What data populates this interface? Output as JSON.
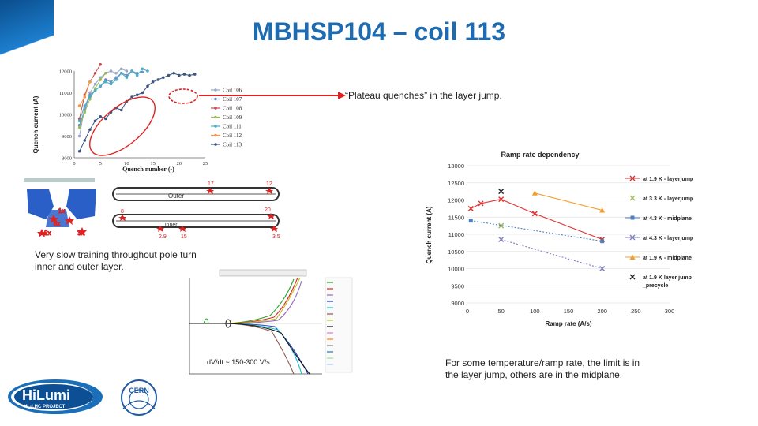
{
  "slide": {
    "title": "MBHSP104 – coil 113",
    "plateau_note": "“Plateau quenches” in the layer jump.",
    "training_note_line1": "Very slow training throughout pole turn",
    "training_note_line2": "inner and outer layer.",
    "ramp_note_line1": "For some temperature/ramp rate, the limit is in",
    "ramp_note_line2": "the layer jump, others are in the midplane.",
    "dvdt_label": "dV/dt ~ 150-300 V/s",
    "logo_hilumi_main": "HiLumi",
    "logo_hilumi_sub": "HL-LHC PROJECT",
    "logo_cern": "CERN"
  },
  "chart_data": [
    {
      "type": "line",
      "title": "",
      "xlabel": "Quench number (-)",
      "ylabel": "Quench current (A)",
      "xlim": [
        0,
        25
      ],
      "ylim": [
        8000,
        12000
      ],
      "x_ticks": [
        "0",
        "5",
        "10",
        "15",
        "20",
        "25"
      ],
      "y_ticks": [
        "8000",
        "9000",
        "10000",
        "11000",
        "12000"
      ],
      "legend_position": "right",
      "series": [
        {
          "name": "Coil 106",
          "color": "#9aa8c8",
          "x": [
            1,
            2,
            3,
            4,
            5,
            6,
            7,
            8,
            9,
            10
          ],
          "values": [
            9000,
            10300,
            11000,
            11400,
            11700,
            11900,
            12000,
            11900,
            12100,
            12000
          ]
        },
        {
          "name": "Coil 107",
          "color": "#6a8fc0",
          "x": [
            1,
            2,
            3,
            4,
            5,
            6,
            7,
            8,
            9,
            10,
            11,
            12,
            13
          ],
          "values": [
            9500,
            10200,
            10900,
            11100,
            11300,
            11600,
            11500,
            11700,
            11900,
            11800,
            12000,
            11900,
            11950
          ]
        },
        {
          "name": "Coil 108",
          "color": "#c0504d",
          "x": [
            1,
            2,
            3,
            4,
            5
          ],
          "values": [
            9800,
            10900,
            11500,
            11900,
            12300
          ]
        },
        {
          "name": "Coil 109",
          "color": "#9bbb59",
          "x": [
            1,
            2,
            3,
            4,
            5,
            6
          ],
          "values": [
            9400,
            10100,
            10700,
            11200,
            11600,
            11900
          ]
        },
        {
          "name": "Coil 111",
          "color": "#4bacc6",
          "x": [
            1,
            2,
            3,
            4,
            5,
            6,
            7,
            8,
            9,
            10,
            11,
            12,
            13,
            14
          ],
          "values": [
            9700,
            10400,
            10800,
            11100,
            11300,
            11500,
            11400,
            11600,
            11900,
            11700,
            12000,
            11800,
            12100,
            12000
          ]
        },
        {
          "name": "Coil 112",
          "color": "#f79646",
          "x": [
            1,
            2,
            3
          ],
          "values": [
            10400,
            10800,
            11500
          ]
        },
        {
          "name": "Coil 113",
          "color": "#3a5683",
          "x": [
            1,
            2,
            3,
            4,
            5,
            6,
            7,
            8,
            9,
            10,
            11,
            12,
            13,
            14,
            15,
            16,
            17,
            18,
            19,
            20,
            21,
            22,
            23
          ],
          "values": [
            8300,
            8800,
            9300,
            9700,
            9900,
            9800,
            10100,
            10300,
            10200,
            10600,
            10800,
            10900,
            11000,
            11300,
            11500,
            11600,
            11700,
            11800,
            11900,
            11800,
            11850,
            11800,
            11850
          ]
        }
      ]
    },
    {
      "type": "scatter",
      "title": "Ramp rate dependency",
      "xlabel": "Ramp rate (A/s)",
      "ylabel": "Quench current (A)",
      "xlim": [
        0,
        300
      ],
      "ylim": [
        9000,
        13000
      ],
      "x_ticks": [
        "0",
        "50",
        "100",
        "150",
        "200",
        "250",
        "300"
      ],
      "y_ticks": [
        "9000",
        "9500",
        "10000",
        "10500",
        "11000",
        "11500",
        "12000",
        "12500",
        "13000"
      ],
      "legend_position": "right",
      "series": [
        {
          "name": "at 1.9 K - layerjump",
          "color": "#e03030",
          "marker": "x",
          "line": true,
          "x": [
            5,
            20,
            50,
            100,
            200
          ],
          "values": [
            11750,
            11900,
            12020,
            11600,
            10850
          ]
        },
        {
          "name": "at 3.3 K - layerjump",
          "color": "#9bbb59",
          "marker": "x",
          "line": false,
          "x": [
            50
          ],
          "values": [
            11250
          ]
        },
        {
          "name": "at 4.3 K - midplane",
          "color": "#4f81bd",
          "marker": "square",
          "line": true,
          "x": [
            5,
            200
          ],
          "values": [
            11400,
            10800
          ]
        },
        {
          "name": "at 4.3 K - layerjump",
          "color": "#7f7fbf",
          "marker": "x",
          "line": true,
          "x": [
            50,
            200
          ],
          "values": [
            10850,
            10000
          ]
        },
        {
          "name": "at 1.9 K - midplane",
          "color": "#f0a030",
          "marker": "triangle",
          "line": true,
          "x": [
            100,
            200
          ],
          "values": [
            12200,
            11700
          ]
        },
        {
          "name": "at 1.9 K layer jump _precycle",
          "color": "#222222",
          "marker": "x",
          "line": false,
          "x": [
            50
          ],
          "values": [
            12250
          ]
        }
      ]
    }
  ]
}
